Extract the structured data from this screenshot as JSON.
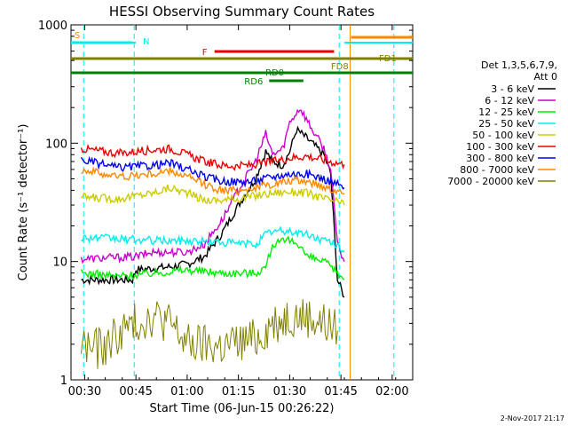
{
  "chart_data": {
    "type": "line",
    "title": "HESSI Observing Summary Count Rates",
    "xlabel": "Start Time (06-Jun-15 00:26:22)",
    "ylabel": "Count Rate (s⁻¹ detector⁻¹)",
    "yscale": "log",
    "ylim": [
      1,
      1000
    ],
    "xlim": [
      "00:26",
      "02:06"
    ],
    "x_ticks": [
      "00:30",
      "00:45",
      "01:00",
      "01:15",
      "01:30",
      "01:45",
      "02:00"
    ],
    "y_ticks": [
      "1",
      "10",
      "100",
      "1000"
    ],
    "legend_header": [
      "Det 1,3,5,6,7,9,",
      "Att 0"
    ],
    "legend_position": "right",
    "series": [
      {
        "name": "3 - 6 keV",
        "color": "#000000",
        "points": [
          [
            "00:29",
            7
          ],
          [
            "00:44",
            7
          ],
          [
            "00:45",
            8.5
          ],
          [
            "00:55",
            9
          ],
          [
            "01:00",
            9.5
          ],
          [
            "01:05",
            11
          ],
          [
            "01:10",
            17
          ],
          [
            "01:15",
            30
          ],
          [
            "01:20",
            50
          ],
          [
            "01:23",
            85
          ],
          [
            "01:25",
            70
          ],
          [
            "01:28",
            65
          ],
          [
            "01:30",
            85
          ],
          [
            "01:32",
            130
          ],
          [
            "01:35",
            110
          ],
          [
            "01:40",
            80
          ],
          [
            "01:42",
            55
          ],
          [
            "01:44",
            7
          ],
          [
            "01:46",
            5
          ]
        ]
      },
      {
        "name": "6 - 12 keV",
        "color": "#cc00cc",
        "points": [
          [
            "00:29",
            10.5
          ],
          [
            "00:45",
            11
          ],
          [
            "00:50",
            12
          ],
          [
            "01:00",
            12
          ],
          [
            "01:05",
            14
          ],
          [
            "01:10",
            22
          ],
          [
            "01:15",
            40
          ],
          [
            "01:20",
            70
          ],
          [
            "01:23",
            120
          ],
          [
            "01:25",
            80
          ],
          [
            "01:28",
            90
          ],
          [
            "01:30",
            150
          ],
          [
            "01:33",
            200
          ],
          [
            "01:36",
            140
          ],
          [
            "01:40",
            90
          ],
          [
            "01:42",
            60
          ],
          [
            "01:44",
            14
          ],
          [
            "01:46",
            10
          ]
        ]
      },
      {
        "name": "12 - 25 keV",
        "color": "#00ee00",
        "points": [
          [
            "00:29",
            8
          ],
          [
            "00:40",
            7.5
          ],
          [
            "00:50",
            8
          ],
          [
            "01:00",
            8.5
          ],
          [
            "01:10",
            8
          ],
          [
            "01:20",
            8
          ],
          [
            "01:23",
            9
          ],
          [
            "01:25",
            14
          ],
          [
            "01:30",
            15
          ],
          [
            "01:33",
            14
          ],
          [
            "01:35",
            11
          ],
          [
            "01:40",
            10
          ],
          [
            "01:44",
            8
          ],
          [
            "01:46",
            7
          ]
        ]
      },
      {
        "name": "25 - 50 keV",
        "color": "#00eeee",
        "points": [
          [
            "00:29",
            16
          ],
          [
            "00:40",
            15.5
          ],
          [
            "00:50",
            15
          ],
          [
            "01:00",
            15
          ],
          [
            "01:10",
            14.5
          ],
          [
            "01:20",
            14
          ],
          [
            "01:23",
            17
          ],
          [
            "01:25",
            18
          ],
          [
            "01:30",
            18
          ],
          [
            "01:35",
            17
          ],
          [
            "01:40",
            15
          ],
          [
            "01:44",
            14
          ],
          [
            "01:46",
            12
          ]
        ]
      },
      {
        "name": "50 - 100 keV",
        "color": "#cccc00",
        "points": [
          [
            "00:29",
            35
          ],
          [
            "00:40",
            34
          ],
          [
            "00:50",
            38
          ],
          [
            "00:55",
            42
          ],
          [
            "01:00",
            38
          ],
          [
            "01:05",
            33
          ],
          [
            "01:10",
            33
          ],
          [
            "01:15",
            34
          ],
          [
            "01:20",
            36
          ],
          [
            "01:25",
            38
          ],
          [
            "01:30",
            39
          ],
          [
            "01:35",
            38
          ],
          [
            "01:40",
            34
          ],
          [
            "01:44",
            32
          ],
          [
            "01:46",
            30
          ]
        ]
      },
      {
        "name": "100 - 300 keV",
        "color": "#ee0000",
        "points": [
          [
            "00:29",
            90
          ],
          [
            "00:40",
            82
          ],
          [
            "00:50",
            88
          ],
          [
            "00:55",
            90
          ],
          [
            "01:00",
            80
          ],
          [
            "01:05",
            70
          ],
          [
            "01:10",
            65
          ],
          [
            "01:15",
            64
          ],
          [
            "01:20",
            66
          ],
          [
            "01:25",
            70
          ],
          [
            "01:30",
            75
          ],
          [
            "01:35",
            78
          ],
          [
            "01:40",
            72
          ],
          [
            "01:44",
            68
          ],
          [
            "01:46",
            66
          ]
        ]
      },
      {
        "name": "300 - 800 keV",
        "color": "#0000ee",
        "points": [
          [
            "00:29",
            72
          ],
          [
            "00:40",
            62
          ],
          [
            "00:50",
            65
          ],
          [
            "00:55",
            68
          ],
          [
            "01:00",
            60
          ],
          [
            "01:05",
            52
          ],
          [
            "01:10",
            48
          ],
          [
            "01:15",
            47
          ],
          [
            "01:20",
            48
          ],
          [
            "01:25",
            52
          ],
          [
            "01:30",
            55
          ],
          [
            "01:35",
            55
          ],
          [
            "01:40",
            50
          ],
          [
            "01:44",
            45
          ],
          [
            "01:46",
            42
          ]
        ]
      },
      {
        "name": "800 - 7000 keV",
        "color": "#ff8800",
        "points": [
          [
            "00:29",
            60
          ],
          [
            "00:40",
            52
          ],
          [
            "00:50",
            55
          ],
          [
            "00:55",
            58
          ],
          [
            "01:00",
            52
          ],
          [
            "01:05",
            45
          ],
          [
            "01:10",
            40
          ],
          [
            "01:15",
            40
          ],
          [
            "01:20",
            42
          ],
          [
            "01:25",
            45
          ],
          [
            "01:30",
            48
          ],
          [
            "01:35",
            48
          ],
          [
            "01:40",
            43
          ],
          [
            "01:44",
            40
          ],
          [
            "01:46",
            37
          ]
        ]
      },
      {
        "name": "7000 - 20000 keV",
        "color": "#808000",
        "points": [
          [
            "00:29",
            2
          ],
          [
            "00:35",
            1.8
          ],
          [
            "00:40",
            2.5
          ],
          [
            "00:45",
            3
          ],
          [
            "00:50",
            3.5
          ],
          [
            "00:55",
            3
          ],
          [
            "01:00",
            2
          ],
          [
            "01:10",
            1.9
          ],
          [
            "01:20",
            2.2
          ],
          [
            "01:25",
            3
          ],
          [
            "01:30",
            3.5
          ],
          [
            "01:35",
            3.4
          ],
          [
            "01:40",
            3
          ],
          [
            "01:44",
            2.6
          ]
        ]
      }
    ],
    "flags": [
      {
        "label": "S",
        "color": "#ff8800",
        "start": "00:26",
        "end": "00:26"
      },
      {
        "label": "N",
        "color": "#00eeee",
        "start": "00:26",
        "end": "00:44"
      },
      {
        "label": "F",
        "color": "#ee0000",
        "start": "01:08",
        "end": "01:43"
      },
      {
        "label": "RD0",
        "color": "#008000",
        "start": "00:26",
        "end": "02:06"
      },
      {
        "label": "RD6",
        "color": "#008000",
        "start": "01:24",
        "end": "01:34"
      },
      {
        "label": "FD8",
        "color": "#808000",
        "start": "00:26",
        "end": "02:06"
      },
      {
        "label": "FD1",
        "color": "#808000",
        "start": "01:49",
        "end": "02:06"
      }
    ],
    "footer": "2-Nov-2017 21:17"
  }
}
